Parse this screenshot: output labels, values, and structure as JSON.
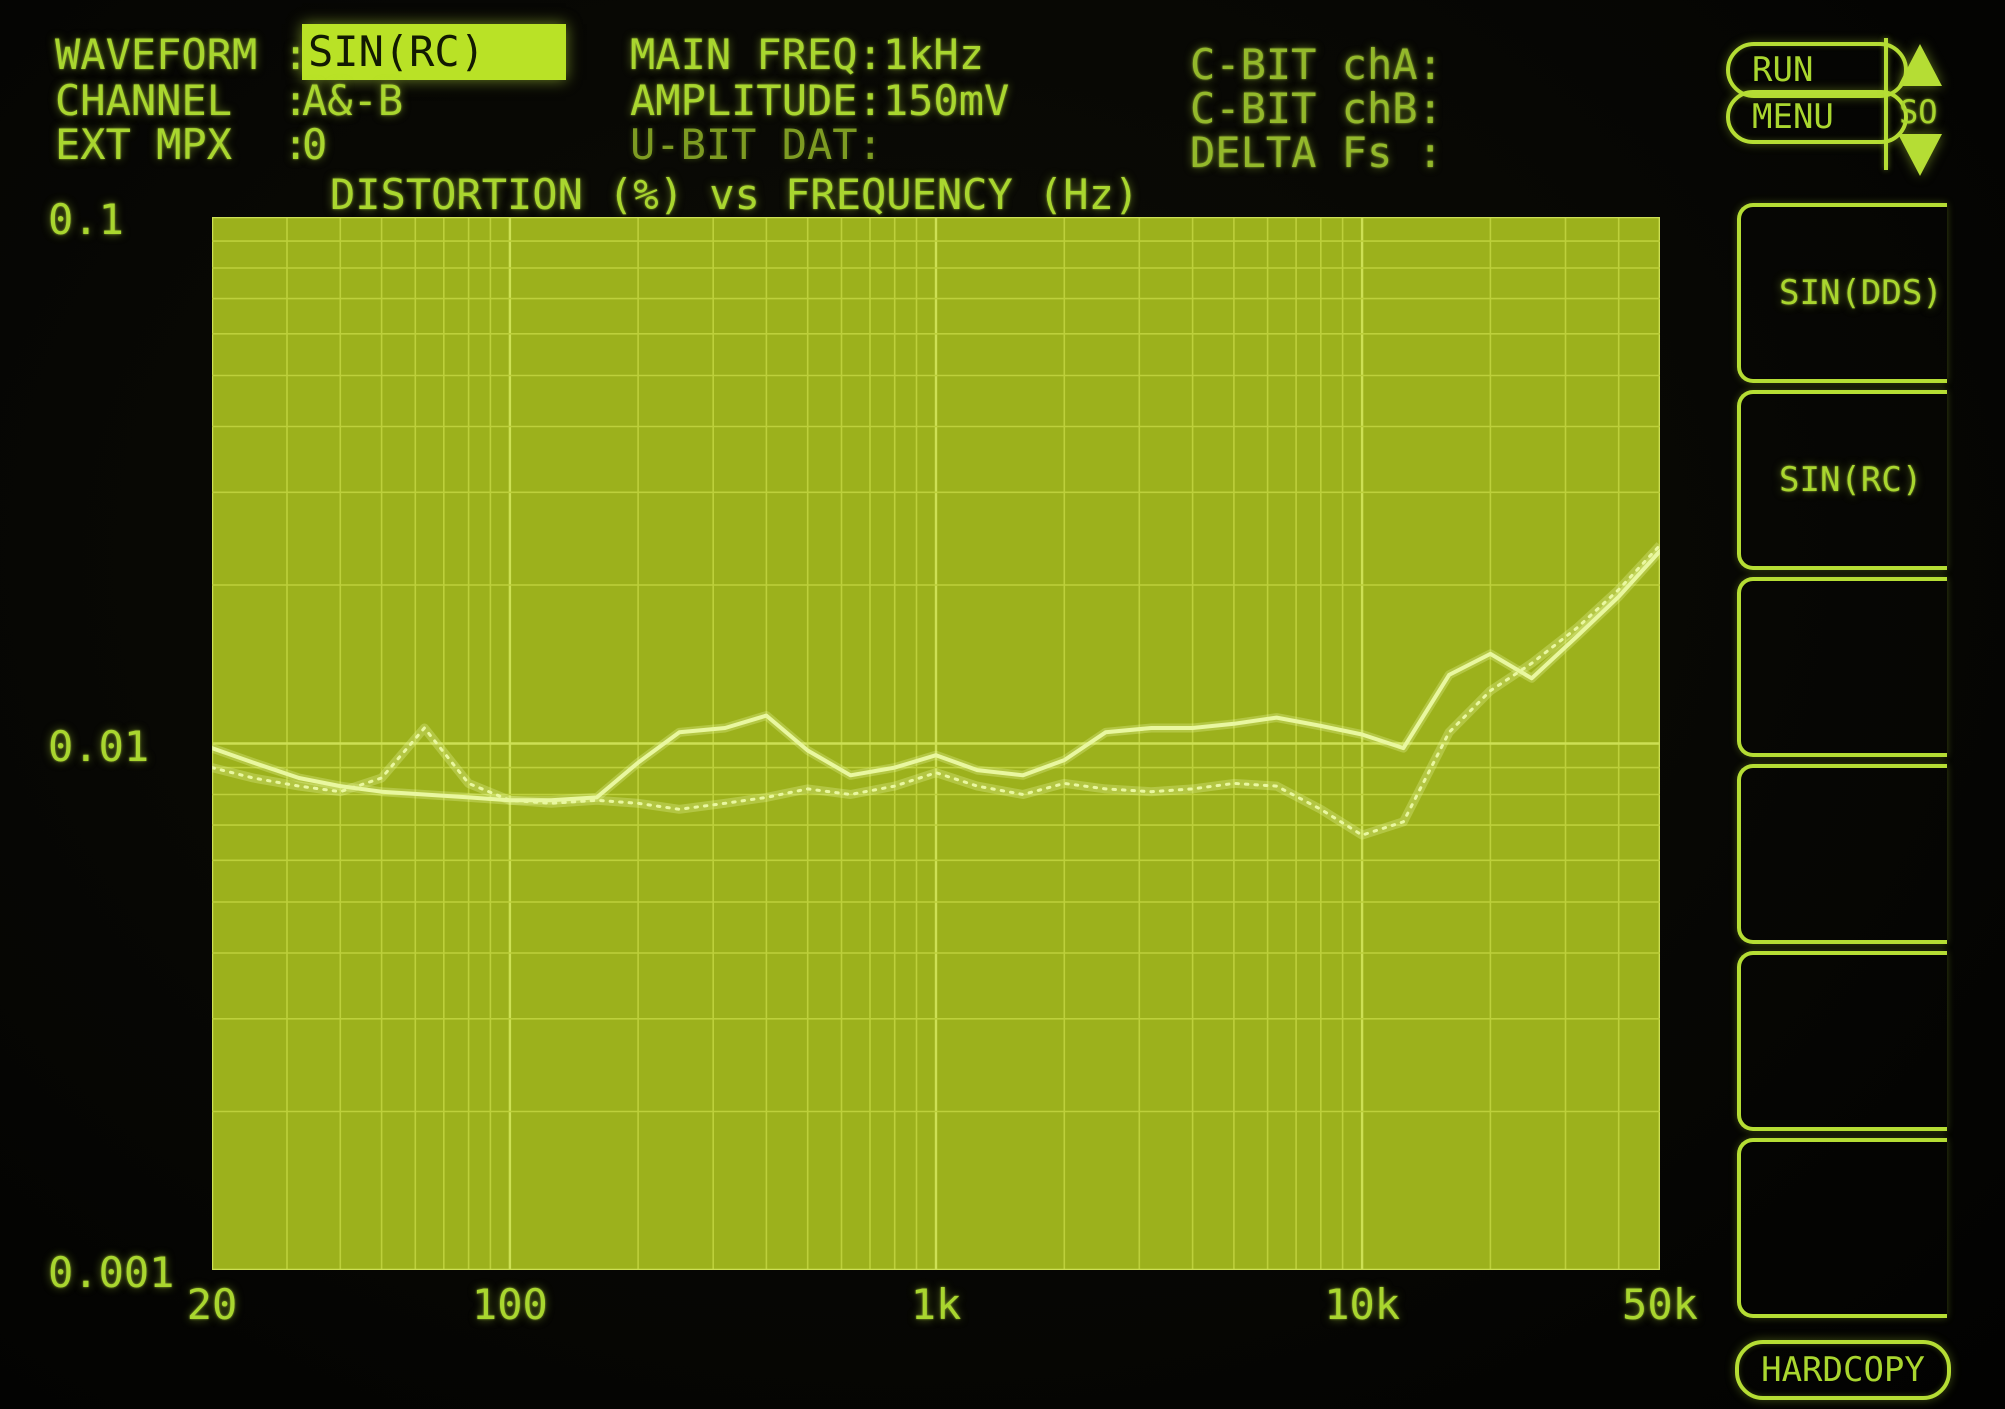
{
  "status": {
    "left": [
      {
        "label": "WAVEFORM",
        "sep": ":",
        "value": "SIN(RC)",
        "highlighted": true
      },
      {
        "label": "CHANNEL",
        "sep": ":",
        "value": "A&-B",
        "highlighted": false
      },
      {
        "label": "EXT MPX",
        "sep": ":",
        "value": "0",
        "highlighted": false
      }
    ],
    "center": [
      {
        "text": "MAIN FREQ:1kHz",
        "dim": false
      },
      {
        "text": "AMPLITUDE:150mV",
        "dim": false
      },
      {
        "text": "U-BIT DAT:",
        "dim": true
      }
    ],
    "right": [
      {
        "text": "C-BIT chA:"
      },
      {
        "text": "C-BIT chB:"
      },
      {
        "text": "DELTA Fs :"
      }
    ]
  },
  "chart_data": {
    "type": "line",
    "title": "DISTORTION (%) vs FREQUENCY (Hz)",
    "xlabel": "FREQUENCY (Hz)",
    "ylabel": "DISTORTION (%)",
    "x_scale": "log",
    "y_scale": "log",
    "xlim": [
      20,
      50000
    ],
    "ylim": [
      0.001,
      0.1
    ],
    "grid": true,
    "x_ticks": [
      {
        "value": 20,
        "label": "20"
      },
      {
        "value": 100,
        "label": "100"
      },
      {
        "value": 1000,
        "label": "1k"
      },
      {
        "value": 10000,
        "label": "10k"
      },
      {
        "value": 50000,
        "label": "50k"
      }
    ],
    "y_ticks": [
      {
        "value": 0.1,
        "label": "0.1"
      },
      {
        "value": 0.01,
        "label": "0.01"
      },
      {
        "value": 0.001,
        "label": "0.001"
      }
    ],
    "x": [
      20,
      25,
      32,
      40,
      50,
      63,
      80,
      100,
      125,
      160,
      200,
      250,
      320,
      400,
      500,
      630,
      800,
      1000,
      1250,
      1600,
      2000,
      2500,
      3200,
      4000,
      5000,
      6300,
      8000,
      10000,
      12500,
      16000,
      20000,
      25000,
      32000,
      40000,
      50000
    ],
    "series": [
      {
        "name": "distortion-trace-solid",
        "style": "solid",
        "y": [
          0.0098,
          0.0092,
          0.0086,
          0.0083,
          0.0081,
          0.008,
          0.0079,
          0.0078,
          0.0078,
          0.0079,
          0.0092,
          0.0105,
          0.0107,
          0.0113,
          0.0097,
          0.0087,
          0.009,
          0.0095,
          0.0089,
          0.0087,
          0.0093,
          0.0105,
          0.0107,
          0.0107,
          0.0109,
          0.0112,
          0.0108,
          0.0104,
          0.0098,
          0.0135,
          0.0148,
          0.0133,
          0.016,
          0.019,
          0.0232
        ]
      },
      {
        "name": "distortion-trace-dotted",
        "style": "dotted",
        "y": [
          0.009,
          0.0086,
          0.0083,
          0.0081,
          0.0086,
          0.0107,
          0.0084,
          0.0078,
          0.0077,
          0.0078,
          0.0077,
          0.0075,
          0.0077,
          0.0079,
          0.0082,
          0.008,
          0.0083,
          0.0088,
          0.0083,
          0.008,
          0.0084,
          0.0082,
          0.0081,
          0.0082,
          0.0084,
          0.0083,
          0.0075,
          0.0067,
          0.0071,
          0.0105,
          0.0126,
          0.0142,
          0.0166,
          0.0196,
          0.0238
        ]
      }
    ]
  },
  "side_panel": {
    "run_label": "RUN",
    "menu_label": "MENU",
    "scroll_label": "SO",
    "softkeys": [
      "SIN(DDS)",
      "SIN(RC)",
      "",
      "",
      "",
      ""
    ],
    "hardcopy_label": "HARDCOPY"
  },
  "colors": {
    "background": "#070704",
    "text_bright": "#a9d62f",
    "text_dim": "#7d9b22",
    "text_medium": "#93b82b",
    "highlight_bg": "#b9e226",
    "highlight_text": "#121a02",
    "panel_outline": "#b5dd34",
    "plot_bg": "#9cb11c",
    "grid_minor": "#bdd03b",
    "grid_major": "#cde054",
    "trace": "#e9f7a0"
  }
}
